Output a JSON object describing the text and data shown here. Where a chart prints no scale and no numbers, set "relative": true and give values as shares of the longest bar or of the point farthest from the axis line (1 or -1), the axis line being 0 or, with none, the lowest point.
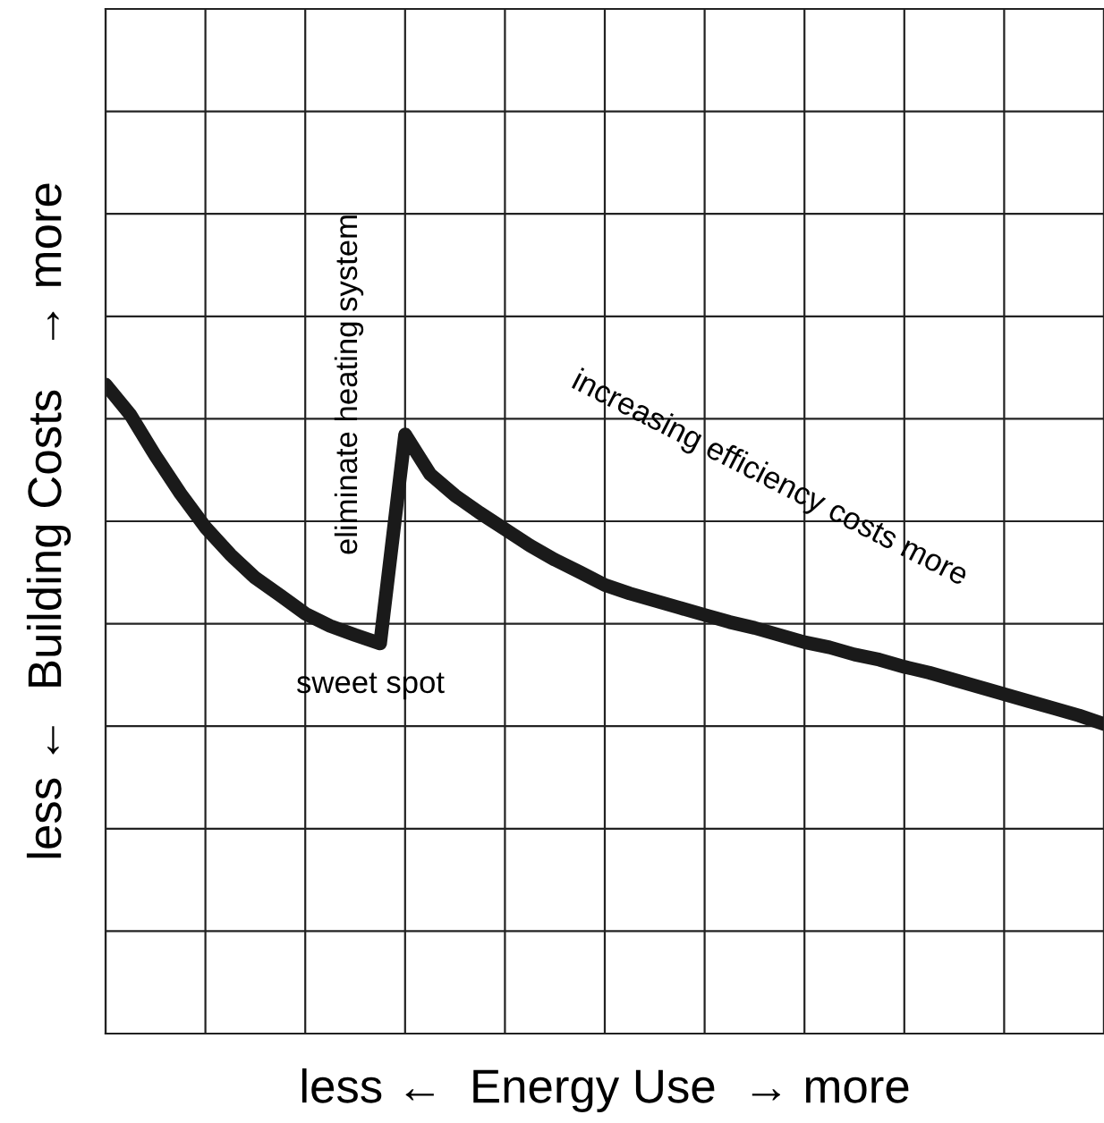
{
  "chart_data": {
    "type": "line",
    "relative": true,
    "xlabel": "less ←  Energy Use  → more",
    "ylabel": "less ←  Building Costs   → more",
    "categories": [
      null,
      null,
      null,
      null,
      null,
      null,
      null,
      null,
      null,
      null,
      null,
      null,
      null,
      null,
      null,
      null,
      null,
      null,
      null,
      null,
      null,
      null,
      null,
      null,
      null,
      null,
      null,
      null,
      null,
      null,
      null,
      null,
      null,
      null,
      null,
      null,
      null,
      null,
      null,
      null,
      null
    ],
    "series": [
      {
        "color": "#1a1a1a",
        "values": [
          1.0,
          0.953,
          0.89,
          0.832,
          0.78,
          0.738,
          0.702,
          0.675,
          0.647,
          0.628,
          0.614,
          0.601,
          0.923,
          0.862,
          0.829,
          0.802,
          0.777,
          0.752,
          0.73,
          0.711,
          0.691,
          0.678,
          0.667,
          0.656,
          0.645,
          0.634,
          0.625,
          0.614,
          0.603,
          0.595,
          0.584,
          0.576,
          0.565,
          0.556,
          0.545,
          0.534,
          0.523,
          0.512,
          0.501,
          0.49,
          0.477
        ]
      }
    ],
    "annotations": [
      "eliminate heating system",
      "sweet spot",
      "increasing efficiency costs more"
    ],
    "grid": true,
    "line_style": "solid",
    "marker": "none"
  }
}
